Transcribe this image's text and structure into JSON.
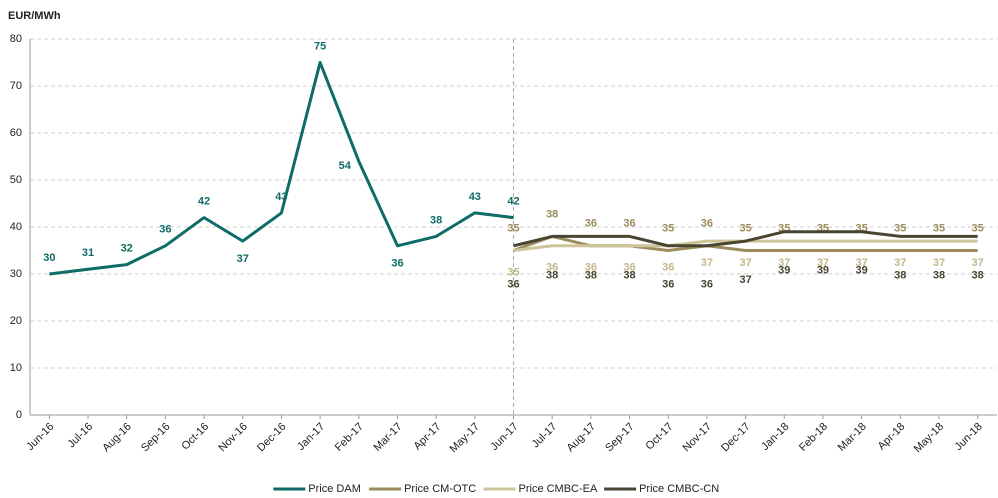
{
  "chart_data": {
    "type": "line",
    "y_axis_label": "EUR/MWh",
    "categories": [
      "Jun-16",
      "Jul-16",
      "Aug-16",
      "Sep-16",
      "Oct-16",
      "Nov-16",
      "Dec-16",
      "Jan-17",
      "Feb-17",
      "Mar-17",
      "Apr-17",
      "May-17",
      "Jun-17",
      "Jul-17",
      "Aug-17",
      "Sep-17",
      "Oct-17",
      "Nov-17",
      "Dec-17",
      "Jan-18",
      "Feb-18",
      "Mar-18",
      "Apr-18",
      "May-18",
      "Jun-18"
    ],
    "series": [
      {
        "name": "Price DAM",
        "color": "#0f6b66",
        "values": [
          30,
          31,
          32,
          36,
          42,
          37,
          43,
          75,
          54,
          36,
          38,
          43,
          42,
          null,
          null,
          null,
          null,
          null,
          null,
          null,
          null,
          null,
          null,
          null,
          null
        ]
      },
      {
        "name": "Price CM-OTC",
        "color": "#9c8c5c",
        "values": [
          null,
          null,
          null,
          null,
          null,
          null,
          null,
          null,
          null,
          null,
          null,
          null,
          35,
          38,
          36,
          36,
          35,
          36,
          35,
          35,
          35,
          35,
          35,
          35,
          35
        ]
      },
      {
        "name": "Price CMBC-EA",
        "color": "#cfc39a",
        "values": [
          null,
          null,
          null,
          null,
          null,
          null,
          null,
          null,
          null,
          null,
          null,
          null,
          35,
          36,
          36,
          36,
          36,
          37,
          37,
          37,
          37,
          37,
          37,
          37,
          37
        ]
      },
      {
        "name": "Price CMBC-CN",
        "color": "#4a4530",
        "values": [
          null,
          null,
          null,
          null,
          null,
          null,
          null,
          null,
          null,
          null,
          null,
          null,
          36,
          38,
          38,
          38,
          36,
          36,
          37,
          39,
          39,
          39,
          38,
          38,
          38
        ]
      }
    ],
    "ylim": [
      0,
      80
    ],
    "yticks": [
      0,
      10,
      20,
      30,
      40,
      50,
      60,
      70,
      80
    ],
    "grid": true
  }
}
